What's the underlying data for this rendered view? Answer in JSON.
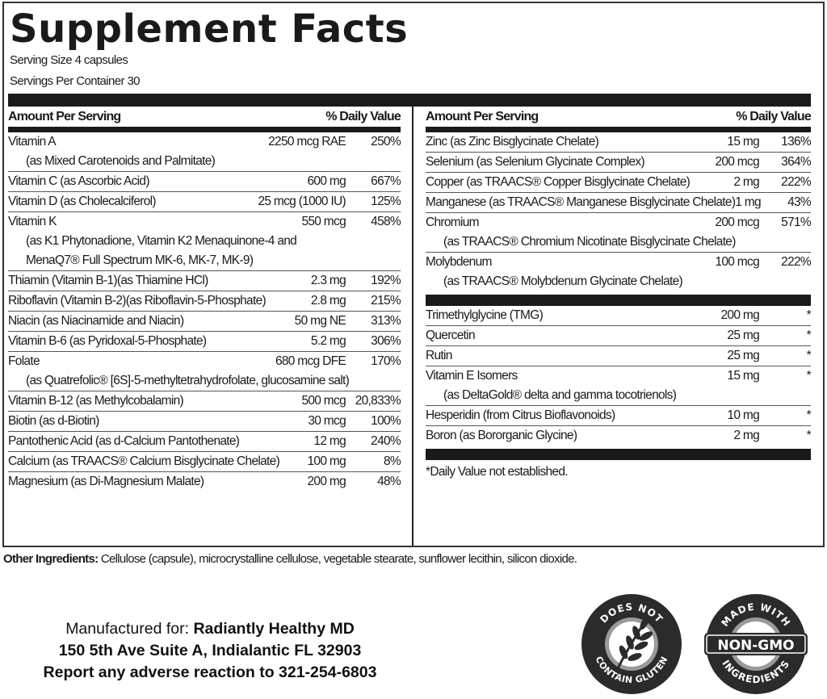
{
  "label": {
    "title": "Supplement Facts",
    "serving_size": "Serving Size 4 capsules",
    "servings_per_container": "Servings Per Container 30"
  },
  "table_headers": {
    "amount_per_serving": "Amount Per Serving",
    "daily_value": "% Daily Value"
  },
  "left_column": [
    {
      "name": "Vitamin A",
      "amount": "2250 mcg RAE",
      "dv": "250%",
      "sub": [
        "(as Mixed Carotenoids and Palmitate)"
      ]
    },
    {
      "name": "Vitamin C (as Ascorbic Acid)",
      "amount": "600 mg",
      "dv": "667%"
    },
    {
      "name": "Vitamin D (as Cholecalciferol)",
      "amount": "25 mcg (1000 IU)",
      "dv": "125%"
    },
    {
      "name": "Vitamin K",
      "amount": "550 mcg",
      "dv": "458%",
      "sub": [
        "(as K1 Phytonadione, Vitamin K2 Menaquinone-4 and",
        "MenaQ7® Full Spectrum MK-6, MK-7, MK-9)"
      ]
    },
    {
      "name": "Thiamin (Vitamin B-1)(as Thiamine HCl)",
      "amount": "2.3 mg",
      "dv": "192%"
    },
    {
      "name": "Riboflavin (Vitamin B-2)(as Riboflavin-5-Phosphate)",
      "amount": "2.8 mg",
      "dv": "215%"
    },
    {
      "name": "Niacin (as Niacinamide and Niacin)",
      "amount": "50 mg NE",
      "dv": "313%"
    },
    {
      "name": "Vitamin B-6 (as Pyridoxal-5-Phosphate)",
      "amount": "5.2 mg",
      "dv": "306%"
    },
    {
      "name": "Folate",
      "amount": "680 mcg DFE",
      "dv": "170%",
      "sub": [
        "(as Quatrefolic® [6S]-5-methyltetrahydrofolate, glucosamine salt)"
      ]
    },
    {
      "name": "Vitamin B-12 (as Methylcobalamin)",
      "amount": "500 mcg",
      "dv": "20,833%"
    },
    {
      "name": "Biotin (as d-Biotin)",
      "amount": "30 mcg",
      "dv": "100%"
    },
    {
      "name": "Pantothenic Acid (as d-Calcium Pantothenate)",
      "amount": "12 mg",
      "dv": "240%"
    },
    {
      "name": "Calcium (as TRAACS® Calcium Bisglycinate Chelate)",
      "amount": "100 mg",
      "dv": "8%"
    },
    {
      "name": "Magnesium (as Di-Magnesium Malate)",
      "amount": "200 mg",
      "dv": "48%"
    }
  ],
  "right_column": [
    {
      "name": "Zinc (as Zinc Bisglycinate Chelate)",
      "amount": "15 mg",
      "dv": "136%"
    },
    {
      "name": "Selenium (as Selenium Glycinate Complex)",
      "amount": "200 mcg",
      "dv": "364%"
    },
    {
      "name": "Copper (as TRAACS® Copper Bisglycinate Chelate)",
      "amount": "2 mg",
      "dv": "222%"
    },
    {
      "name": "Manganese (as TRAACS® Manganese Bisglycinate Chelate)",
      "amount": "1 mg",
      "dv": "43%"
    },
    {
      "name": "Chromium",
      "amount": "200 mcg",
      "dv": "571%",
      "sub": [
        "(as TRAACS® Chromium Nicotinate Bisglycinate Chelate)"
      ]
    },
    {
      "name": "Molybdenum",
      "amount": "100 mcg",
      "dv": "222%",
      "sub": [
        "(as TRAACS® Molybdenum Glycinate Chelate)"
      ]
    }
  ],
  "right_column_other": [
    {
      "name": "Trimethylglycine  (TMG)",
      "amount": "200 mg",
      "dv": "*"
    },
    {
      "name": "Quercetin",
      "amount": "25 mg",
      "dv": "*"
    },
    {
      "name": "Rutin",
      "amount": "25 mg",
      "dv": "*"
    },
    {
      "name": "Vitamin E Isomers",
      "amount": "15 mg",
      "dv": "*",
      "sub": [
        "(as DeltaGold® delta and gamma tocotrienols)"
      ]
    },
    {
      "name": "Hesperidin (from Citrus Bioflavonoids)",
      "amount": "10 mg",
      "dv": "*"
    },
    {
      "name": "Boron (as Bororganic Glycine)",
      "amount": "2 mg",
      "dv": "*"
    }
  ],
  "footnote": "*Daily Value not established.",
  "other_ingredients": {
    "label": "Other Ingredients:",
    "text": " Cellulose (capsule), microcrystalline cellulose, vegetable stearate, sunflower lecithin, silicon dioxide."
  },
  "manufacturer": {
    "prefix": "Manufactured for: ",
    "brand": "Radiantly Healthy MD",
    "address": "150 5th Ave Suite A, Indialantic FL 32903",
    "report": "Report any adverse reaction to 321-254-6803"
  },
  "badges": {
    "gluten": {
      "top": "DOES NOT",
      "bottom": "CONTAIN GLUTEN"
    },
    "non_gmo": {
      "top": "MADE WITH",
      "center": "NON-GMO",
      "bottom": "INGREDIENTS"
    }
  },
  "colors": {
    "ink": "#1a1a1a",
    "badge_dark": "#2b2b2b",
    "badge_ring": "#9a9a9a"
  }
}
